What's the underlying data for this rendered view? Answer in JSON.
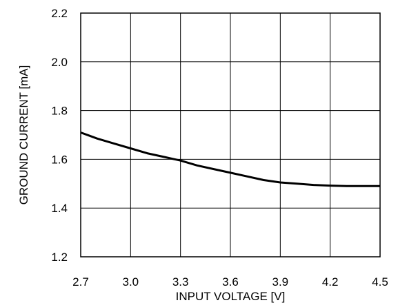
{
  "chart_data": {
    "type": "line",
    "title": "",
    "xlabel": "INPUT VOLTAGE [V]",
    "ylabel": "GROUND CURRENT [mA]",
    "xlim": [
      2.7,
      4.5
    ],
    "ylim": [
      1.2,
      2.2
    ],
    "xticks": [
      "2.7",
      "3.0",
      "3.3",
      "3.6",
      "3.9",
      "4.2",
      "4.5"
    ],
    "yticks": [
      "1.2",
      "1.4",
      "1.6",
      "1.8",
      "2.0",
      "2.2"
    ],
    "grid": true,
    "series": [
      {
        "color": "#000000",
        "x": [
          2.7,
          2.8,
          2.9,
          3.0,
          3.1,
          3.2,
          3.3,
          3.4,
          3.5,
          3.6,
          3.7,
          3.8,
          3.9,
          4.0,
          4.1,
          4.2,
          4.3,
          4.4,
          4.5
        ],
        "y": [
          1.71,
          1.685,
          1.665,
          1.645,
          1.625,
          1.61,
          1.595,
          1.575,
          1.56,
          1.545,
          1.53,
          1.515,
          1.505,
          1.5,
          1.495,
          1.492,
          1.49,
          1.49,
          1.49
        ]
      }
    ]
  }
}
